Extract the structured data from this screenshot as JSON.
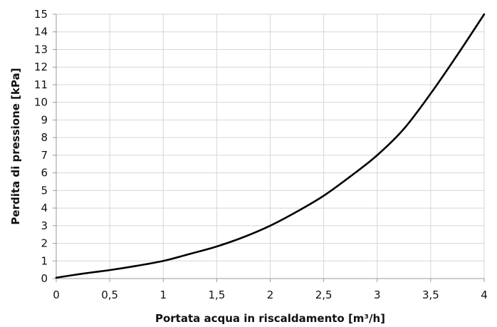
{
  "chart_data": {
    "type": "line",
    "title": "",
    "xlabel": "Portata acqua in riscaldamento [m³/h]",
    "ylabel": "Perdita di pressione [kPa]",
    "xlim": [
      0,
      4
    ],
    "ylim": [
      0,
      15
    ],
    "x_ticks": [
      0,
      0.5,
      1,
      1.5,
      2,
      2.5,
      3,
      3.5,
      4
    ],
    "x_tick_labels": [
      "0",
      "0,5",
      "1",
      "1,5",
      "2",
      "2,5",
      "3",
      "3,5",
      "4"
    ],
    "y_ticks": [
      0,
      1,
      2,
      3,
      4,
      5,
      6,
      7,
      8,
      9,
      10,
      11,
      12,
      13,
      14,
      15
    ],
    "y_tick_labels": [
      "0",
      "1",
      "2",
      "3",
      "4",
      "5",
      "6",
      "7",
      "8",
      "9",
      "10",
      "11",
      "12",
      "13",
      "14",
      "15"
    ],
    "grid": true,
    "legend": "none",
    "line_color": "#000000",
    "series": [
      {
        "x": [
          0,
          0.25,
          0.5,
          0.75,
          1,
          1.25,
          1.5,
          1.75,
          2,
          2.25,
          2.5,
          2.75,
          3,
          3.25,
          3.5,
          3.75,
          4
        ],
        "y": [
          0.05,
          0.28,
          0.48,
          0.72,
          1.0,
          1.4,
          1.82,
          2.35,
          3.0,
          3.8,
          4.7,
          5.8,
          7.0,
          8.5,
          10.5,
          12.7,
          15.0
        ]
      }
    ]
  }
}
